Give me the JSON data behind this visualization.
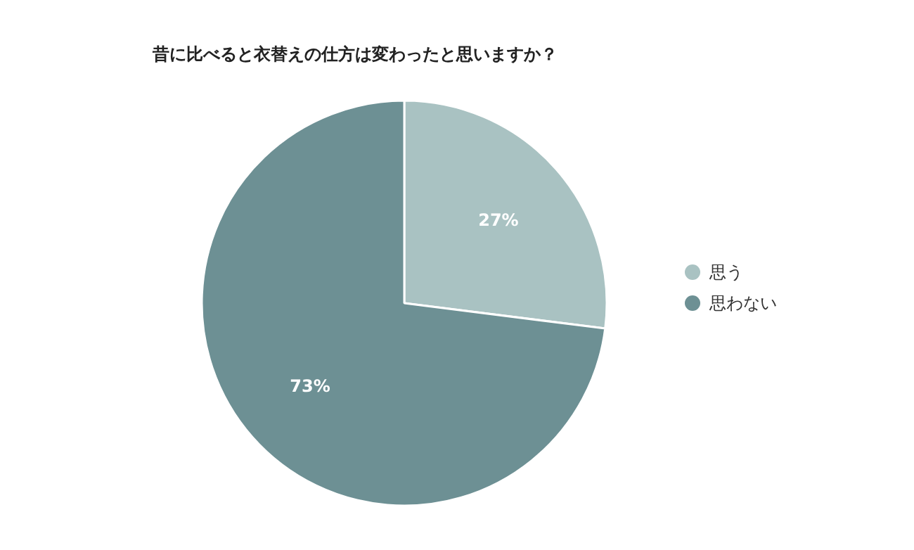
{
  "chart_data": {
    "type": "pie",
    "title": "昔に比べると衣替えの仕方は変わったと思いますか？",
    "categories": [
      "思う",
      "思わない"
    ],
    "values": [
      27,
      73
    ],
    "value_labels": [
      "27%",
      "73%"
    ],
    "colors": [
      "#a9c2c2",
      "#6d9094"
    ],
    "legend": "right"
  }
}
